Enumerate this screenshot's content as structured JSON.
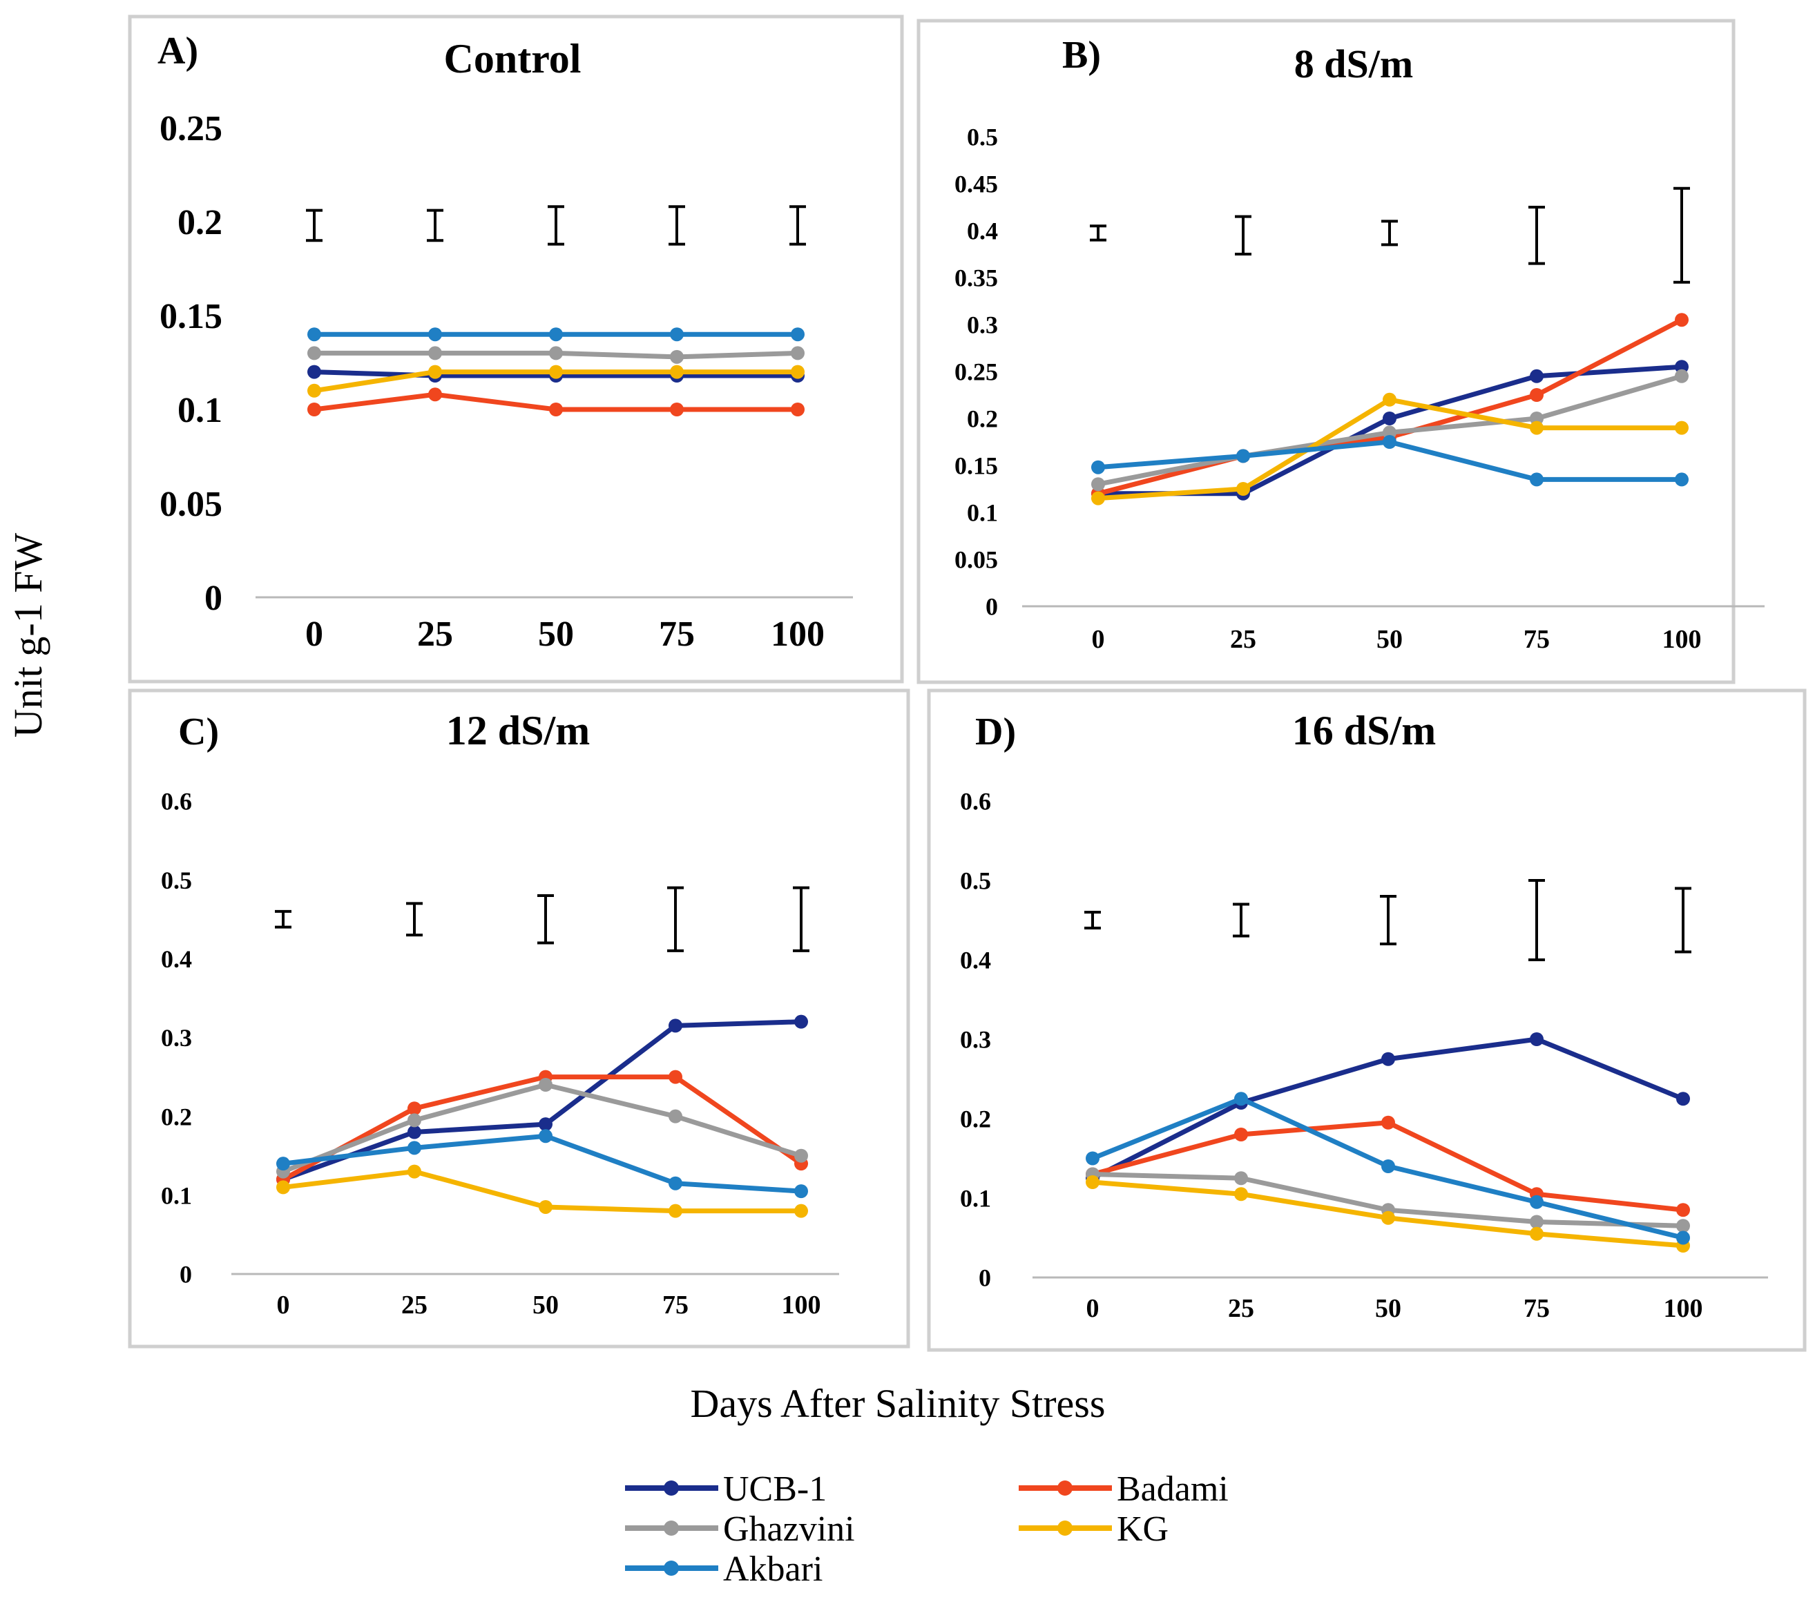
{
  "figure": {
    "y_axis_title": "Unit g-1 FW",
    "x_axis_title": "Days After Salinity Stress"
  },
  "series_colors": {
    "UCB-1": "#1a2d8c",
    "Badami": "#f0461e",
    "Ghazvini": "#9a9a9a",
    "KG": "#f5b400",
    "Akbari": "#1f7fc4"
  },
  "legend": [
    {
      "name": "UCB-1",
      "color": "#1a2d8c"
    },
    {
      "name": "Badami",
      "color": "#f0461e"
    },
    {
      "name": "Ghazvini",
      "color": "#9a9a9a"
    },
    {
      "name": "KG",
      "color": "#f5b400"
    },
    {
      "name": "Akbari",
      "color": "#1f7fc4"
    }
  ],
  "chart_data": [
    {
      "type": "line",
      "panel_label": "A)",
      "title": "Control",
      "x": [
        0,
        25,
        50,
        75,
        100
      ],
      "x_tick_labels": [
        "0",
        "25",
        "50",
        "75",
        "100"
      ],
      "ylim": [
        0,
        0.25
      ],
      "y_ticks": [
        0,
        0.05,
        0.1,
        0.15,
        0.2,
        0.25
      ],
      "y_tick_labels": [
        "0",
        "0.05",
        "0.1",
        "0.15",
        "0.2",
        "0.25"
      ],
      "error_bars": [
        {
          "x": 0,
          "low": 0.19,
          "high": 0.206
        },
        {
          "x": 25,
          "low": 0.19,
          "high": 0.206
        },
        {
          "x": 50,
          "low": 0.188,
          "high": 0.208
        },
        {
          "x": 75,
          "low": 0.188,
          "high": 0.208
        },
        {
          "x": 100,
          "low": 0.188,
          "high": 0.208
        }
      ],
      "series": [
        {
          "name": "UCB-1",
          "values": [
            0.12,
            0.118,
            0.118,
            0.118,
            0.118
          ]
        },
        {
          "name": "Badami",
          "values": [
            0.1,
            0.108,
            0.1,
            0.1,
            0.1
          ]
        },
        {
          "name": "Ghazvini",
          "values": [
            0.13,
            0.13,
            0.13,
            0.128,
            0.13
          ]
        },
        {
          "name": "KG",
          "values": [
            0.11,
            0.12,
            0.12,
            0.12,
            0.12
          ]
        },
        {
          "name": "Akbari",
          "values": [
            0.14,
            0.14,
            0.14,
            0.14,
            0.14
          ]
        }
      ]
    },
    {
      "type": "line",
      "panel_label": "B)",
      "title": "8 dS/m",
      "x": [
        0,
        25,
        50,
        75,
        100
      ],
      "x_tick_labels": [
        "0",
        "25",
        "50",
        "75",
        "100"
      ],
      "ylim": [
        0,
        0.5
      ],
      "y_ticks": [
        0,
        0.05,
        0.1,
        0.15,
        0.2,
        0.25,
        0.3,
        0.35,
        0.4,
        0.45,
        0.5
      ],
      "y_tick_labels": [
        "0",
        "0.05",
        "0.1",
        "0.15",
        "0.2",
        "0.25",
        "0.3",
        "0.35",
        "0.4",
        "0.45",
        "0.5"
      ],
      "error_bars": [
        {
          "x": 0,
          "low": 0.39,
          "high": 0.405
        },
        {
          "x": 25,
          "low": 0.375,
          "high": 0.415
        },
        {
          "x": 50,
          "low": 0.385,
          "high": 0.41
        },
        {
          "x": 75,
          "low": 0.365,
          "high": 0.425
        },
        {
          "x": 100,
          "low": 0.345,
          "high": 0.445
        }
      ],
      "series": [
        {
          "name": "UCB-1",
          "values": [
            0.12,
            0.12,
            0.2,
            0.245,
            0.255
          ]
        },
        {
          "name": "Badami",
          "values": [
            0.12,
            0.16,
            0.18,
            0.225,
            0.305
          ]
        },
        {
          "name": "Ghazvini",
          "values": [
            0.13,
            0.16,
            0.185,
            0.2,
            0.245
          ]
        },
        {
          "name": "KG",
          "values": [
            0.115,
            0.125,
            0.22,
            0.19,
            0.19
          ]
        },
        {
          "name": "Akbari",
          "values": [
            0.148,
            0.16,
            0.175,
            0.135,
            0.135
          ]
        }
      ]
    },
    {
      "type": "line",
      "panel_label": "C)",
      "title": "12 dS/m",
      "x": [
        0,
        25,
        50,
        75,
        100
      ],
      "x_tick_labels": [
        "0",
        "25",
        "50",
        "75",
        "100"
      ],
      "ylim": [
        0,
        0.6
      ],
      "y_ticks": [
        0,
        0.1,
        0.2,
        0.3,
        0.4,
        0.5,
        0.6
      ],
      "y_tick_labels": [
        "0",
        "0.1",
        "0.2",
        "0.3",
        "0.4",
        "0.5",
        "0.6"
      ],
      "error_bars": [
        {
          "x": 0,
          "low": 0.44,
          "high": 0.46
        },
        {
          "x": 25,
          "low": 0.43,
          "high": 0.47
        },
        {
          "x": 50,
          "low": 0.42,
          "high": 0.48
        },
        {
          "x": 75,
          "low": 0.41,
          "high": 0.49
        },
        {
          "x": 100,
          "low": 0.41,
          "high": 0.49
        }
      ],
      "series": [
        {
          "name": "UCB-1",
          "values": [
            0.12,
            0.18,
            0.19,
            0.315,
            0.32
          ]
        },
        {
          "name": "Badami",
          "values": [
            0.12,
            0.21,
            0.25,
            0.25,
            0.14
          ]
        },
        {
          "name": "Ghazvini",
          "values": [
            0.13,
            0.195,
            0.24,
            0.2,
            0.15
          ]
        },
        {
          "name": "KG",
          "values": [
            0.11,
            0.13,
            0.085,
            0.08,
            0.08
          ]
        },
        {
          "name": "Akbari",
          "values": [
            0.14,
            0.16,
            0.175,
            0.115,
            0.105
          ]
        }
      ]
    },
    {
      "type": "line",
      "panel_label": "D)",
      "title": "16 dS/m",
      "x": [
        0,
        25,
        50,
        75,
        100
      ],
      "x_tick_labels": [
        "0",
        "25",
        "50",
        "75",
        "100"
      ],
      "ylim": [
        0,
        0.6
      ],
      "y_ticks": [
        0,
        0.1,
        0.2,
        0.3,
        0.4,
        0.5,
        0.6
      ],
      "y_tick_labels": [
        "0",
        "0.1",
        "0.2",
        "0.3",
        "0.4",
        "0.5",
        "0.6"
      ],
      "error_bars": [
        {
          "x": 0,
          "low": 0.44,
          "high": 0.46
        },
        {
          "x": 25,
          "low": 0.43,
          "high": 0.47
        },
        {
          "x": 50,
          "low": 0.42,
          "high": 0.48
        },
        {
          "x": 75,
          "low": 0.4,
          "high": 0.5
        },
        {
          "x": 100,
          "low": 0.41,
          "high": 0.49
        }
      ],
      "series": [
        {
          "name": "UCB-1",
          "values": [
            0.125,
            0.22,
            0.275,
            0.3,
            0.225
          ]
        },
        {
          "name": "Badami",
          "values": [
            0.13,
            0.18,
            0.195,
            0.105,
            0.085
          ]
        },
        {
          "name": "Ghazvini",
          "values": [
            0.13,
            0.125,
            0.085,
            0.07,
            0.065
          ]
        },
        {
          "name": "KG",
          "values": [
            0.12,
            0.105,
            0.075,
            0.055,
            0.04
          ]
        },
        {
          "name": "Akbari",
          "values": [
            0.15,
            0.225,
            0.14,
            0.095,
            0.05
          ]
        }
      ]
    }
  ]
}
